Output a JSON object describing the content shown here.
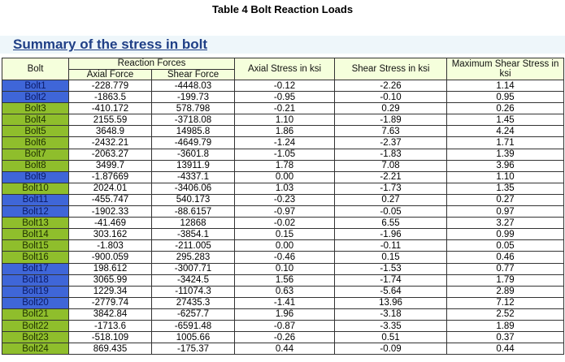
{
  "caption": "Table 4 Bolt Reaction Loads",
  "subtitle": "Summary of the stress in bolt",
  "headers": {
    "bolt": "Bolt",
    "reaction_forces": "Reaction Forces",
    "axial_force": "Axial Force",
    "shear_force": "Shear Force",
    "axial_stress": "Axial Stress in ksi",
    "shear_stress": "Shear Stress in ksi",
    "max_shear_stress": "Maximum Shear Stress in ksi"
  },
  "colors": {
    "blue_bolt": "#3f66d8",
    "green_bolt": "#8fbe2c",
    "header_bg": "#f5ffdc",
    "subtitle": "#1f3f86"
  },
  "rows": [
    {
      "bolt": "Bolt1",
      "color": "blue",
      "axial_force": "-228.779",
      "shear_force": "-4448.03",
      "axial_stress": "-0.12",
      "shear_stress": "-2.26",
      "max_shear": "1.14"
    },
    {
      "bolt": "Bolt2",
      "color": "blue",
      "axial_force": "-1863.5",
      "shear_force": "-199.73",
      "axial_stress": "-0.95",
      "shear_stress": "-0.10",
      "max_shear": "0.95"
    },
    {
      "bolt": "Bolt3",
      "color": "green",
      "axial_force": "-410.172",
      "shear_force": "578.798",
      "axial_stress": "-0.21",
      "shear_stress": "0.29",
      "max_shear": "0.26"
    },
    {
      "bolt": "Bolt4",
      "color": "green",
      "axial_force": "2155.59",
      "shear_force": "-3718.08",
      "axial_stress": "1.10",
      "shear_stress": "-1.89",
      "max_shear": "1.45"
    },
    {
      "bolt": "Bolt5",
      "color": "green",
      "axial_force": "3648.9",
      "shear_force": "14985.8",
      "axial_stress": "1.86",
      "shear_stress": "7.63",
      "max_shear": "4.24"
    },
    {
      "bolt": "Bolt6",
      "color": "green",
      "axial_force": "-2432.21",
      "shear_force": "-4649.79",
      "axial_stress": "-1.24",
      "shear_stress": "-2.37",
      "max_shear": "1.71"
    },
    {
      "bolt": "Bolt7",
      "color": "green",
      "axial_force": "-2063.27",
      "shear_force": "-3601.8",
      "axial_stress": "-1.05",
      "shear_stress": "-1.83",
      "max_shear": "1.39"
    },
    {
      "bolt": "Bolt8",
      "color": "green",
      "axial_force": "3499.7",
      "shear_force": "13911.9",
      "axial_stress": "1.78",
      "shear_stress": "7.08",
      "max_shear": "3.96"
    },
    {
      "bolt": "Bolt9",
      "color": "blue",
      "axial_force": "-1.87669",
      "shear_force": "-4337.1",
      "axial_stress": "0.00",
      "shear_stress": "-2.21",
      "max_shear": "1.10"
    },
    {
      "bolt": "Bolt10",
      "color": "green",
      "axial_force": "2024.01",
      "shear_force": "-3406.06",
      "axial_stress": "1.03",
      "shear_stress": "-1.73",
      "max_shear": "1.35"
    },
    {
      "bolt": "Bolt11",
      "color": "blue",
      "axial_force": "-455.747",
      "shear_force": "540.173",
      "axial_stress": "-0.23",
      "shear_stress": "0.27",
      "max_shear": "0.27"
    },
    {
      "bolt": "Bolt12",
      "color": "blue",
      "axial_force": "-1902.33",
      "shear_force": "-88.6157",
      "axial_stress": "-0.97",
      "shear_stress": "-0.05",
      "max_shear": "0.97"
    },
    {
      "bolt": "Bolt13",
      "color": "green",
      "axial_force": "-41.469",
      "shear_force": "12868",
      "axial_stress": "-0.02",
      "shear_stress": "6.55",
      "max_shear": "3.27"
    },
    {
      "bolt": "Bolt14",
      "color": "green",
      "axial_force": "303.162",
      "shear_force": "-3854.1",
      "axial_stress": "0.15",
      "shear_stress": "-1.96",
      "max_shear": "0.99"
    },
    {
      "bolt": "Bolt15",
      "color": "green",
      "axial_force": "-1.803",
      "shear_force": "-211.005",
      "axial_stress": "0.00",
      "shear_stress": "-0.11",
      "max_shear": "0.05"
    },
    {
      "bolt": "Bolt16",
      "color": "green",
      "axial_force": "-900.059",
      "shear_force": "295.283",
      "axial_stress": "-0.46",
      "shear_stress": "0.15",
      "max_shear": "0.46"
    },
    {
      "bolt": "Bolt17",
      "color": "blue",
      "axial_force": "198.612",
      "shear_force": "-3007.71",
      "axial_stress": "0.10",
      "shear_stress": "-1.53",
      "max_shear": "0.77"
    },
    {
      "bolt": "Bolt18",
      "color": "blue",
      "axial_force": "3065.99",
      "shear_force": "-3424.5",
      "axial_stress": "1.56",
      "shear_stress": "-1.74",
      "max_shear": "1.79"
    },
    {
      "bolt": "Bolt19",
      "color": "blue",
      "axial_force": "1229.34",
      "shear_force": "-11074.3",
      "axial_stress": "0.63",
      "shear_stress": "-5.64",
      "max_shear": "2.89"
    },
    {
      "bolt": "Bolt20",
      "color": "blue",
      "axial_force": "-2779.74",
      "shear_force": "27435.3",
      "axial_stress": "-1.41",
      "shear_stress": "13.96",
      "max_shear": "7.12"
    },
    {
      "bolt": "Bolt21",
      "color": "green",
      "axial_force": "3842.84",
      "shear_force": "-6257.7",
      "axial_stress": "1.96",
      "shear_stress": "-3.18",
      "max_shear": "2.52"
    },
    {
      "bolt": "Bolt22",
      "color": "green",
      "axial_force": "-1713.6",
      "shear_force": "-6591.48",
      "axial_stress": "-0.87",
      "shear_stress": "-3.35",
      "max_shear": "1.89"
    },
    {
      "bolt": "Bolt23",
      "color": "green",
      "axial_force": "-518.109",
      "shear_force": "1005.66",
      "axial_stress": "-0.26",
      "shear_stress": "0.51",
      "max_shear": "0.37"
    },
    {
      "bolt": "Bolt24",
      "color": "green",
      "axial_force": "869.435",
      "shear_force": "-175.37",
      "axial_stress": "0.44",
      "shear_stress": "-0.09",
      "max_shear": "0.44"
    }
  ]
}
